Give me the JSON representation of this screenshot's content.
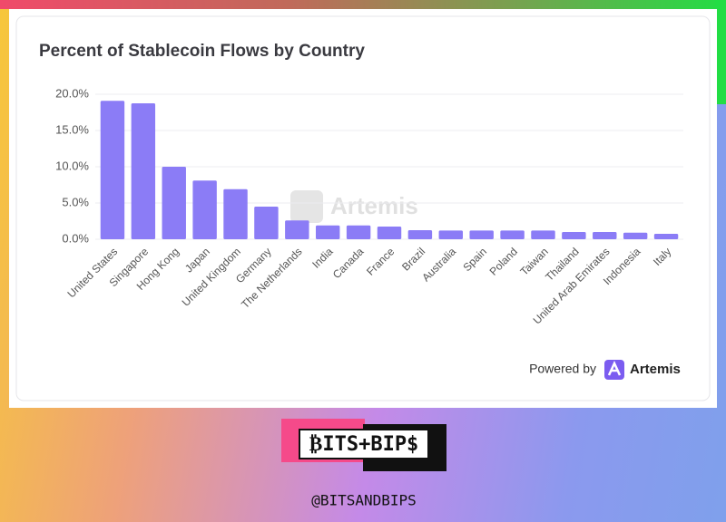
{
  "chart_data": {
    "type": "bar",
    "title": "Percent of Stablecoin Flows by Country",
    "categories": [
      "United States",
      "Singapore",
      "Hong Kong",
      "Japan",
      "United Kingdom",
      "Germany",
      "The Netherlands",
      "India",
      "Canada",
      "France",
      "Brazil",
      "Australia",
      "Spain",
      "Poland",
      "Taiwan",
      "Thailand",
      "United Arab Emirates",
      "Indonesia",
      "Italy"
    ],
    "values": [
      19.1,
      18.75,
      10.0,
      8.1,
      6.9,
      4.5,
      2.6,
      1.9,
      1.9,
      1.75,
      1.25,
      1.2,
      1.2,
      1.2,
      1.2,
      1.0,
      1.0,
      0.9,
      0.75
    ],
    "color": "#8b7cf6",
    "ylim": [
      0,
      20
    ],
    "yticks": [
      {
        "value": 0,
        "label": "0.0%"
      },
      {
        "value": 5,
        "label": "5.0%"
      },
      {
        "value": 10,
        "label": "10.0%"
      },
      {
        "value": 15,
        "label": "15.0%"
      },
      {
        "value": 20,
        "label": "20.0%"
      }
    ],
    "grid": true,
    "watermark": "Artemis",
    "powered_by": "Powered by",
    "brand": "Artemis"
  },
  "footer": {
    "logo": "₿ITS+BIP$",
    "handle": "@BITSANDBIPS"
  }
}
